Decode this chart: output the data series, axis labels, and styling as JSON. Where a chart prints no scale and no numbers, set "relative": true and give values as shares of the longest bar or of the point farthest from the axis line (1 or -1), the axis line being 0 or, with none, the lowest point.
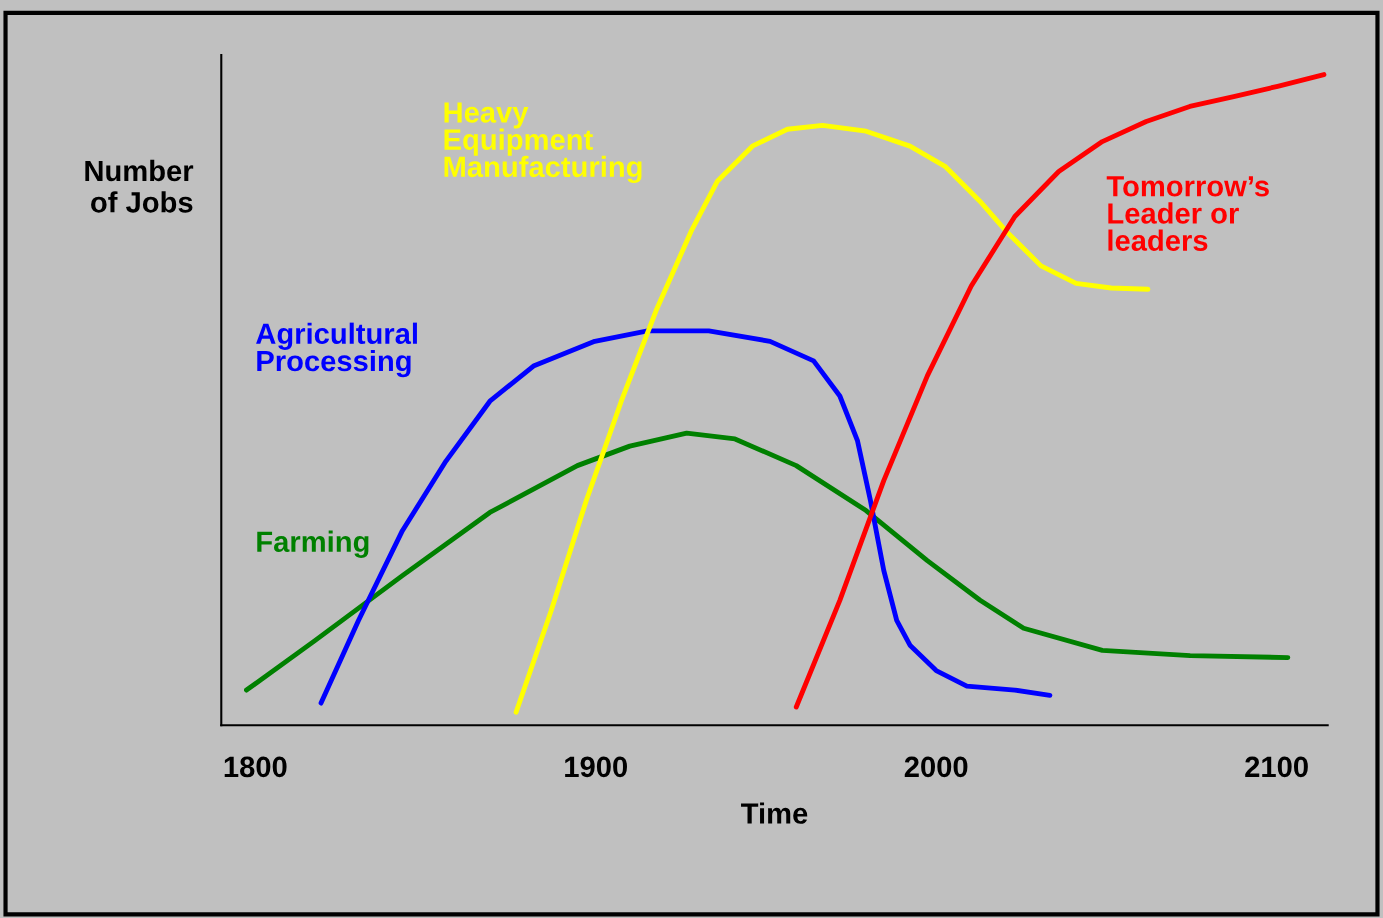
{
  "chart_data": {
    "type": "line",
    "relative": true,
    "xlabel": "Time",
    "ylabel": "Number\nof Jobs",
    "xlim": [
      1790,
      2115
    ],
    "xticks": [
      1800,
      1900,
      2000,
      2100
    ],
    "grid": false,
    "marker": "none",
    "line_style": "solid",
    "series": [
      {
        "name": "Farming",
        "color": "#008000",
        "x": [
          1797.4,
          1817.5,
          1843.2,
          1868.9,
          1894.6,
          1910.0,
          1926.7,
          1940.9,
          1958.9,
          1979.4,
          1997.4,
          2012.9,
          2025.7,
          2048.8,
          2074.6,
          2103.3
        ],
        "values": [
          0.054,
          0.13,
          0.23,
          0.327,
          0.399,
          0.429,
          0.449,
          0.44,
          0.399,
          0.33,
          0.253,
          0.192,
          0.149,
          0.115,
          0.107,
          0.104
        ]
      },
      {
        "name": "Agricultural\nProcessing",
        "color": "#0000ff",
        "x": [
          1819.3,
          1830.3,
          1843.2,
          1856.0,
          1868.9,
          1881.7,
          1899.7,
          1915.2,
          1933.2,
          1951.2,
          1964.0,
          1971.7,
          1976.9,
          1980.7,
          1984.6,
          1988.4,
          1992.3,
          2000.0,
          2009.0,
          2023.1,
          2033.4
        ],
        "values": [
          0.034,
          0.161,
          0.299,
          0.406,
          0.498,
          0.552,
          0.59,
          0.606,
          0.606,
          0.59,
          0.56,
          0.506,
          0.437,
          0.345,
          0.238,
          0.161,
          0.123,
          0.084,
          0.06,
          0.054,
          0.046
        ]
      },
      {
        "name": "Heavy\nEquipment\nManufacturing",
        "color": "#ffff00",
        "x": [
          1876.6,
          1886.9,
          1897.2,
          1907.5,
          1917.7,
          1928.0,
          1935.7,
          1946.0,
          1956.3,
          1966.6,
          1979.4,
          1992.3,
          2002.6,
          2012.9,
          2020.6,
          2030.8,
          2041.1,
          2051.4,
          2062.2
        ],
        "values": [
          0.02,
          0.176,
          0.345,
          0.498,
          0.637,
          0.759,
          0.836,
          0.89,
          0.916,
          0.922,
          0.913,
          0.89,
          0.859,
          0.805,
          0.759,
          0.706,
          0.679,
          0.672,
          0.67
        ]
      },
      {
        "name": "Tomorrow’s\nLeader or\nleaders",
        "color": "#ff0000",
        "x": [
          1958.9,
          1971.7,
          1984.6,
          1997.4,
          2010.3,
          2023.1,
          2036.0,
          2048.8,
          2061.7,
          2074.5,
          2087.4,
          2100.3,
          2113.9
        ],
        "values": [
          0.028,
          0.192,
          0.376,
          0.537,
          0.675,
          0.782,
          0.851,
          0.897,
          0.928,
          0.951,
          0.966,
          0.982,
          1.0
        ]
      }
    ]
  }
}
